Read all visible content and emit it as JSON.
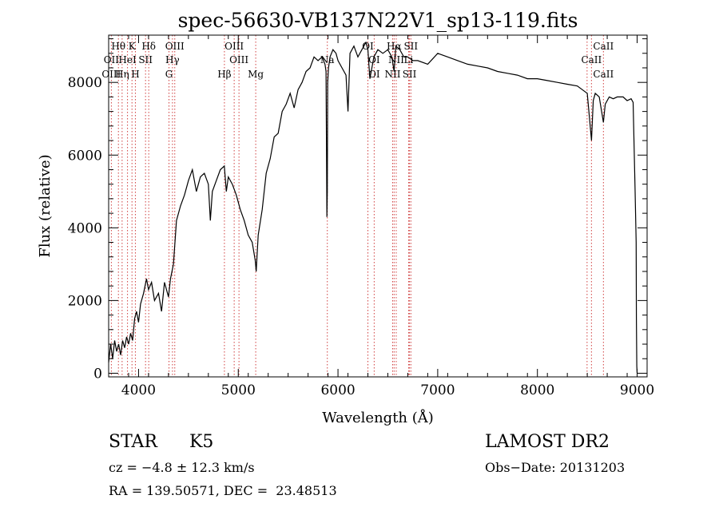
{
  "chart_data": {
    "type": "line",
    "title": "spec-56630-VB137N22V1_sp13-119.fits",
    "xlabel": "Wavelength (Å)",
    "ylabel": "Flux (relative)",
    "xlim": [
      3700,
      9100
    ],
    "ylim": [
      -100,
      9300
    ],
    "x_ticks": [
      4000,
      5000,
      6000,
      7000,
      8000,
      9000
    ],
    "y_ticks": [
      0,
      2000,
      4000,
      6000,
      8000
    ],
    "grid": false,
    "series": [
      {
        "x": [
          3700,
          3720,
          3740,
          3760,
          3780,
          3800,
          3820,
          3840,
          3860,
          3880,
          3900,
          3920,
          3940,
          3960,
          3980,
          4000,
          4020,
          4050,
          4080,
          4100,
          4130,
          4160,
          4200,
          4230,
          4260,
          4300,
          4320,
          4350,
          4380,
          4420,
          4460,
          4500,
          4540,
          4580,
          4620,
          4660,
          4700,
          4720,
          4740,
          4780,
          4820,
          4860,
          4880,
          4900,
          4940,
          4980,
          5020,
          5060,
          5100,
          5140,
          5170,
          5180,
          5200,
          5240,
          5280,
          5320,
          5360,
          5400,
          5440,
          5480,
          5520,
          5560,
          5600,
          5640,
          5680,
          5720,
          5760,
          5800,
          5840,
          5870,
          5880,
          5889,
          5893,
          5897,
          5905,
          5920,
          5950,
          5980,
          6000,
          6040,
          6080,
          6100,
          6120,
          6160,
          6200,
          6240,
          6280,
          6300,
          6320,
          6360,
          6400,
          6450,
          6500,
          6540,
          6563,
          6580,
          6620,
          6660,
          6700,
          6750,
          6800,
          6900,
          7000,
          7100,
          7200,
          7300,
          7400,
          7500,
          7600,
          7700,
          7800,
          7900,
          8000,
          8100,
          8200,
          8300,
          8400,
          8450,
          8500,
          8542,
          8560,
          8580,
          8620,
          8662,
          8680,
          8720,
          8760,
          8800,
          8860,
          8900,
          8940,
          8960,
          8980,
          8990,
          8993,
          8997,
          9000
        ],
        "y": [
          300,
          800,
          400,
          900,
          600,
          800,
          500,
          900,
          700,
          1000,
          800,
          1100,
          900,
          1500,
          1700,
          1400,
          1900,
          2200,
          2600,
          2300,
          2500,
          2000,
          2200,
          1700,
          2500,
          2100,
          2600,
          3000,
          4200,
          4600,
          4900,
          5300,
          5600,
          5000,
          5400,
          5500,
          5200,
          4200,
          5000,
          5300,
          5600,
          5700,
          5000,
          5400,
          5200,
          4900,
          4500,
          4200,
          3800,
          3600,
          3100,
          2800,
          3800,
          4500,
          5500,
          5900,
          6500,
          6600,
          7200,
          7400,
          7700,
          7300,
          7800,
          8000,
          8300,
          8400,
          8700,
          8600,
          8700,
          8500,
          8300,
          4300,
          5000,
          8000,
          8400,
          8700,
          8900,
          8800,
          8600,
          8400,
          8200,
          7200,
          8800,
          9000,
          8700,
          8900,
          9100,
          8900,
          8100,
          8700,
          8900,
          8800,
          8900,
          8700,
          8300,
          9000,
          8900,
          8700,
          8700,
          8600,
          8600,
          8500,
          8800,
          8700,
          8600,
          8500,
          8450,
          8400,
          8300,
          8250,
          8200,
          8100,
          8100,
          8050,
          8000,
          7950,
          7900,
          7800,
          7700,
          6400,
          7500,
          7700,
          7600,
          6900,
          7400,
          7600,
          7550,
          7600,
          7600,
          7500,
          7550,
          7450,
          5000,
          3600,
          1500,
          200,
          0
        ]
      }
    ],
    "annotations": [
      {
        "label": "Hθ",
        "wavelength": 3798,
        "row": 0
      },
      {
        "label": "K",
        "wavelength": 3934,
        "row": 0
      },
      {
        "label": "Hδ",
        "wavelength": 4102,
        "row": 0
      },
      {
        "label": "OIII",
        "wavelength": 4363,
        "row": 0
      },
      {
        "label": "OIII",
        "wavelength": 4959,
        "row": 0
      },
      {
        "label": "OI",
        "wavelength": 6300,
        "row": 0
      },
      {
        "label": "Hα",
        "wavelength": 6563,
        "row": 0
      },
      {
        "label": "SII",
        "wavelength": 6731,
        "row": 0
      },
      {
        "label": "CaII",
        "wavelength": 8662,
        "row": 0
      },
      {
        "label": "OII",
        "wavelength": 3727,
        "row": 1
      },
      {
        "label": "HeI",
        "wavelength": 3889,
        "row": 1
      },
      {
        "label": "SII",
        "wavelength": 4070,
        "row": 1
      },
      {
        "label": "Hγ",
        "wavelength": 4340,
        "row": 1
      },
      {
        "label": "OIII",
        "wavelength": 5007,
        "row": 1
      },
      {
        "label": "Na",
        "wavelength": 5893,
        "row": 1
      },
      {
        "label": "OI",
        "wavelength": 6363,
        "row": 1
      },
      {
        "label": "NII",
        "wavelength": 6584,
        "row": 1
      },
      {
        "label": "Li",
        "wavelength": 6708,
        "row": 1
      },
      {
        "label": "CaII",
        "wavelength": 8542,
        "row": 1
      },
      {
        "label": "OIII",
        "wavelength": 3727,
        "row": 2
      },
      {
        "label": "Hη",
        "wavelength": 3835,
        "row": 2
      },
      {
        "label": "H",
        "wavelength": 3968,
        "row": 2
      },
      {
        "label": "G",
        "wavelength": 4305,
        "row": 2
      },
      {
        "label": "Hβ",
        "wavelength": 4861,
        "row": 2
      },
      {
        "label": "Mg",
        "wavelength": 5175,
        "row": 2
      },
      {
        "label": "OI",
        "wavelength": 6363,
        "row": 2
      },
      {
        "label": "NII",
        "wavelength": 6548,
        "row": 2
      },
      {
        "label": "SII",
        "wavelength": 6717,
        "row": 2
      },
      {
        "label": "CaII",
        "wavelength": 8662,
        "row": 2
      }
    ],
    "line_markers": [
      3727,
      3798,
      3835,
      3889,
      3934,
      3968,
      4070,
      4102,
      4305,
      4340,
      4363,
      4861,
      4959,
      5007,
      5175,
      5893,
      6300,
      6363,
      6548,
      6563,
      6584,
      6708,
      6717,
      6731,
      8498,
      8542,
      8662
    ]
  },
  "info": {
    "class_label": "STAR",
    "subclass": "K5",
    "survey": "LAMOST DR2",
    "cz": "cz = −4.8 ± 12.3 km/s",
    "obs_date": "Obs−Date: 20131203",
    "coords": "RA = 139.50571, DEC =  23.48513"
  }
}
